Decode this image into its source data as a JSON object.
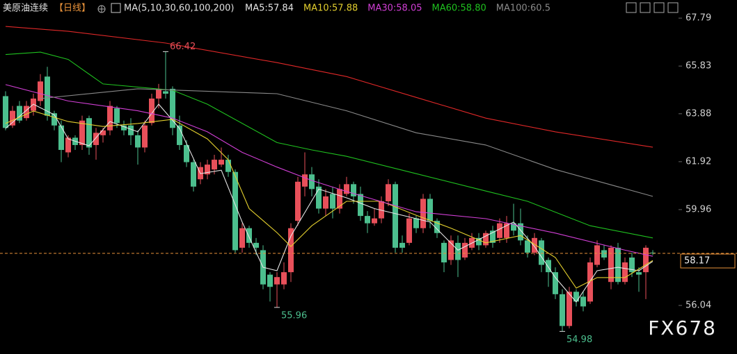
{
  "chart_data": {
    "type": "candlestick",
    "title": "美原油连续",
    "period": "【日线】",
    "indicator": "MA(5,10,30,60,100,200)",
    "watermark": "FX678",
    "up_color": "#e8505a",
    "down_color": "#4cbf8e",
    "last_color": "#e8923a",
    "categories": [
      null,
      null,
      null,
      null,
      null,
      null,
      null,
      null,
      null,
      null,
      null,
      null,
      null,
      null,
      null,
      null,
      null,
      null,
      null,
      null,
      null,
      null,
      null,
      null,
      null,
      null,
      null,
      null,
      null,
      null,
      null,
      null,
      null,
      null,
      null,
      null,
      null,
      null,
      null,
      null,
      null,
      null,
      null,
      null,
      null,
      null,
      null,
      null,
      null,
      null,
      null,
      null,
      null,
      null,
      null,
      null,
      null,
      null,
      null,
      null,
      null,
      null,
      null,
      null,
      null,
      null,
      null,
      null,
      null,
      null,
      null,
      null,
      null,
      null,
      null,
      null,
      null,
      null,
      null,
      null,
      null,
      null,
      null,
      null,
      null,
      null,
      null,
      null,
      null,
      null,
      null,
      null,
      null,
      null
    ],
    "open": [
      64.6,
      63.4,
      64.2,
      63.7,
      64.0,
      64.4,
      65.4,
      63.9,
      63.4,
      62.3,
      62.9,
      62.6,
      63.7,
      62.6,
      63.0,
      63.2,
      64.1,
      63.4,
      63.4,
      63.0,
      62.5,
      63.5,
      64.5,
      64.8,
      64.9,
      63.4,
      62.6,
      61.9,
      61.2,
      61.4,
      61.6,
      61.8,
      62.0,
      61.5,
      58.4,
      59.2,
      58.6,
      58.3,
      57.3,
      56.9,
      56.9,
      57.4,
      59.5,
      60.9,
      61.4,
      60.9,
      60.0,
      60.6,
      60.0,
      60.6,
      61.0,
      60.6,
      59.7,
      59.4,
      59.6,
      60.3,
      61.0,
      58.6,
      58.6,
      59.6,
      59.2,
      60.4,
      59.5,
      58.6,
      57.9,
      58.6,
      58.0,
      58.4,
      58.8,
      58.5,
      59.1,
      58.8,
      58.8,
      59.4,
      59.4,
      58.7,
      58.2,
      58.7,
      57.9,
      57.4,
      56.5,
      55.2,
      56.6,
      56.4,
      56.2,
      57.7,
      58.3,
      57.0,
      58.4,
      57.0,
      58.0,
      57.4,
      57.4,
      58.2
    ],
    "high": [
      64.8,
      64.2,
      64.4,
      64.4,
      64.7,
      65.5,
      65.8,
      64.0,
      63.6,
      63.0,
      63.0,
      63.8,
      63.8,
      63.3,
      63.3,
      64.4,
      64.2,
      63.6,
      63.7,
      63.2,
      63.6,
      64.7,
      65.1,
      66.42,
      65.0,
      63.8,
      62.8,
      62.0,
      61.9,
      62.0,
      62.2,
      62.5,
      62.2,
      61.6,
      59.4,
      59.3,
      58.8,
      58.5,
      57.4,
      57.4,
      57.8,
      59.4,
      61.3,
      62.3,
      61.7,
      61.2,
      60.8,
      60.9,
      61.0,
      61.3,
      61.1,
      60.9,
      59.9,
      60.0,
      60.5,
      61.2,
      61.1,
      58.9,
      59.8,
      59.7,
      60.6,
      60.6,
      59.6,
      58.7,
      58.9,
      58.9,
      58.8,
      59.0,
      59.0,
      59.1,
      59.3,
      59.6,
      59.7,
      60.2,
      60.0,
      58.9,
      59.0,
      58.8,
      58.0,
      57.6,
      56.7,
      56.8,
      56.7,
      56.6,
      58.0,
      58.7,
      58.5,
      58.5,
      58.6,
      58.0,
      58.2,
      57.6,
      58.5,
      58.3
    ],
    "low": [
      63.2,
      63.3,
      63.5,
      63.6,
      63.8,
      64.2,
      63.6,
      63.2,
      61.9,
      62.1,
      62.4,
      62.4,
      62.2,
      62.0,
      62.7,
      63.0,
      63.3,
      63.0,
      62.6,
      61.8,
      62.3,
      63.4,
      64.1,
      64.5,
      63.0,
      62.4,
      61.7,
      60.7,
      61.0,
      61.2,
      61.4,
      61.7,
      61.3,
      58.2,
      58.2,
      58.4,
      58.1,
      56.7,
      56.2,
      55.96,
      56.7,
      57.0,
      59.3,
      60.5,
      60.5,
      59.8,
      59.7,
      59.6,
      59.8,
      60.5,
      60.2,
      59.5,
      59.0,
      59.3,
      59.4,
      60.1,
      58.2,
      58.2,
      58.5,
      59.0,
      59.0,
      59.2,
      58.8,
      57.4,
      57.7,
      57.2,
      57.9,
      58.3,
      58.3,
      58.4,
      58.4,
      58.6,
      58.6,
      58.9,
      58.5,
      58.0,
      58.1,
      57.4,
      56.8,
      56.3,
      54.98,
      55.1,
      56.0,
      55.8,
      56.1,
      57.6,
      57.9,
      56.7,
      56.9,
      56.9,
      57.2,
      56.6,
      56.3,
      58.1
    ],
    "close": [
      63.3,
      64.0,
      63.6,
      64.2,
      64.5,
      65.2,
      63.8,
      63.4,
      62.4,
      62.9,
      62.6,
      63.6,
      62.5,
      63.1,
      63.2,
      64.2,
      63.5,
      63.2,
      63.0,
      62.5,
      63.4,
      64.5,
      64.9,
      64.7,
      63.3,
      62.6,
      61.9,
      60.9,
      61.7,
      61.8,
      62.0,
      62.0,
      61.5,
      58.3,
      59.2,
      58.6,
      58.4,
      56.9,
      56.8,
      57.2,
      57.4,
      59.2,
      61.1,
      61.4,
      60.8,
      60.0,
      60.5,
      60.0,
      60.8,
      61.0,
      60.5,
      59.7,
      59.4,
      59.6,
      60.3,
      61.0,
      58.4,
      58.4,
      59.6,
      59.2,
      60.4,
      59.5,
      59.0,
      57.8,
      58.7,
      57.9,
      58.6,
      58.8,
      58.5,
      59.0,
      58.6,
      59.4,
      59.4,
      59.1,
      58.7,
      58.2,
      58.8,
      57.7,
      57.4,
      56.5,
      55.2,
      56.6,
      56.2,
      56.0,
      57.8,
      58.5,
      58.0,
      58.4,
      57.0,
      57.8,
      57.4,
      57.3,
      58.4,
      58.17
    ],
    "series": [
      {
        "name": "MA5:57.84",
        "color": "#e6e6e6",
        "x": [
          0,
          4,
          7,
          9,
          12,
          15,
          19,
          22,
          25,
          28,
          31,
          34,
          37,
          39,
          41,
          45,
          49,
          53,
          57,
          61,
          65,
          69,
          73,
          76,
          79,
          82,
          85,
          88,
          91,
          93
        ],
        "values": [
          63.28,
          64.27,
          63.84,
          62.85,
          62.57,
          63.56,
          63.14,
          64.27,
          63.28,
          61.43,
          61.57,
          59.45,
          57.6,
          57.46,
          58.88,
          60.8,
          60.44,
          60.0,
          59.73,
          59.45,
          58.3,
          58.88,
          59.45,
          58.45,
          57.18,
          56.18,
          57.46,
          57.6,
          57.46,
          57.84
        ]
      },
      {
        "name": "MA10:57.88",
        "color": "#e3cf2e",
        "x": [
          0,
          4,
          9,
          14,
          19,
          24,
          29,
          32,
          35,
          39,
          41,
          44,
          49,
          54,
          59,
          64,
          69,
          74,
          79,
          82,
          85,
          89,
          93
        ],
        "values": [
          63.48,
          63.99,
          63.56,
          63.36,
          63.48,
          63.65,
          62.85,
          62.0,
          60.0,
          59.02,
          58.45,
          59.3,
          60.3,
          60.3,
          59.73,
          59.2,
          58.6,
          58.9,
          58.0,
          56.75,
          57.18,
          57.18,
          57.88
        ]
      },
      {
        "name": "MA30:58.05",
        "color": "#d23fd6",
        "x": [
          0,
          9,
          19,
          24,
          29,
          34,
          39,
          44,
          49,
          59,
          69,
          79,
          89,
          93
        ],
        "values": [
          65.07,
          64.4,
          64.0,
          63.7,
          63.14,
          62.3,
          61.7,
          61.15,
          60.7,
          59.87,
          59.59,
          59.0,
          58.3,
          58.05
        ]
      },
      {
        "name": "MA60:58.80",
        "color": "#1fc21f",
        "x": [
          0,
          5,
          9,
          14,
          24,
          29,
          39,
          44,
          49,
          59,
          69,
          75,
          84,
          93
        ],
        "values": [
          66.3,
          66.4,
          66.1,
          65.1,
          64.84,
          64.27,
          62.7,
          62.4,
          62.14,
          61.43,
          60.72,
          60.3,
          59.3,
          58.8
        ]
      },
      {
        "name": "MA100:60.5",
        "color": "#8a8a8a",
        "x": [
          5,
          19,
          39,
          49,
          59,
          69,
          79,
          93
        ],
        "values": [
          64.5,
          64.9,
          64.7,
          64.0,
          63.1,
          62.6,
          61.6,
          60.5
        ]
      },
      {
        "color": "#e02828",
        "x": [
          0,
          9,
          23,
          39,
          49,
          59,
          69,
          79,
          93
        ],
        "values": [
          67.45,
          67.25,
          66.77,
          65.97,
          65.4,
          64.55,
          63.7,
          63.14,
          62.51
        ]
      }
    ],
    "ylim": [
      54.5,
      68.5
    ],
    "yticks": [
      56.04,
      59.96,
      61.92,
      63.88,
      65.83,
      67.79
    ]
  }
}
